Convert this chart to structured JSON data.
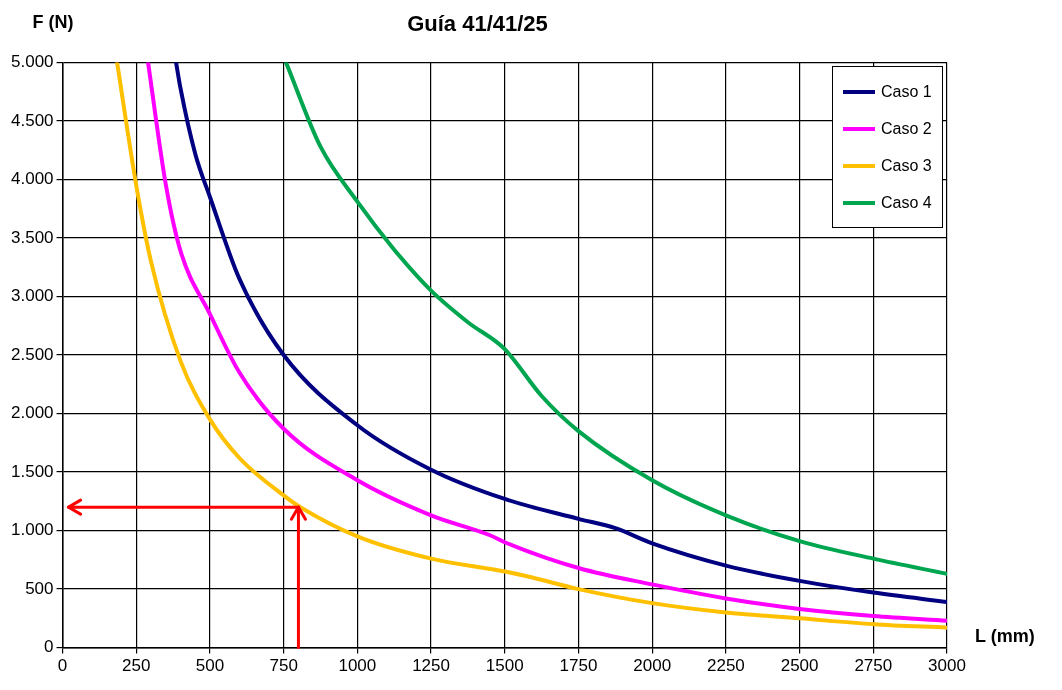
{
  "chart_data": {
    "type": "line",
    "title": "Guía 41/41/25",
    "xlabel": "L (mm)",
    "ylabel": "F (N)",
    "xlim": [
      0,
      3000
    ],
    "xticks": [
      0,
      250,
      500,
      750,
      1000,
      1250,
      1500,
      1750,
      2000,
      2250,
      2500,
      2750,
      3000
    ],
    "ylim": [
      0,
      5000
    ],
    "yticks": [
      0,
      500,
      {
        "value": 1000,
        "label": "1.000"
      },
      {
        "value": 1500,
        "label": "1.500"
      },
      {
        "value": 2000,
        "label": "2.000"
      },
      {
        "value": 2500,
        "label": "2.500"
      },
      {
        "value": 3000,
        "label": "3.000"
      },
      {
        "value": 3500,
        "label": "3.500"
      },
      {
        "value": 4000,
        "label": "4.000"
      },
      {
        "value": 4500,
        "label": "4.500"
      },
      {
        "value": 5000,
        "label": "5.000"
      }
    ],
    "grid": true,
    "legend": "top right",
    "marker": "none",
    "line_style": "solid",
    "series": [
      {
        "name": "Caso 1",
        "color": "#000080",
        "x": [
          385,
          400,
          450,
          500,
          600,
          750,
          1000,
          1250,
          1500,
          1750,
          1875,
          2000,
          2250,
          2500,
          2750,
          3000
        ],
        "values": [
          5000,
          4780,
          4220,
          3850,
          3150,
          2500,
          1900,
          1520,
          1270,
          1100,
          1020,
          890,
          700,
          570,
          470,
          390
        ]
      },
      {
        "name": "Caso 2",
        "color": "#ff00ff",
        "x": [
          290,
          350,
          400,
          500,
          600,
          750,
          1000,
          1250,
          1450,
          1500,
          1750,
          2000,
          2250,
          2500,
          2750,
          3000
        ],
        "values": [
          5000,
          3960,
          3390,
          2850,
          2350,
          1870,
          1430,
          1130,
          960,
          900,
          680,
          540,
          420,
          330,
          270,
          230
        ]
      },
      {
        "name": "Caso 3",
        "color": "#ffc000",
        "x": [
          185,
          250,
          300,
          400,
          500,
          600,
          750,
          800,
          1000,
          1250,
          1500,
          1575,
          1750,
          2000,
          2250,
          2500,
          2750,
          3000
        ],
        "values": [
          5000,
          3950,
          3300,
          2450,
          1950,
          1620,
          1300,
          1210,
          950,
          760,
          650,
          610,
          500,
          380,
          300,
          250,
          200,
          170
        ]
      },
      {
        "name": "Caso 4",
        "color": "#00a550",
        "x": [
          758,
          875,
          1000,
          1125,
          1250,
          1375,
          1500,
          1625,
          1750,
          2000,
          2250,
          2500,
          2750,
          3000
        ],
        "values": [
          5000,
          4280,
          3810,
          3400,
          3050,
          2780,
          2550,
          2150,
          1850,
          1430,
          1130,
          910,
          760,
          630
        ]
      }
    ]
  }
}
